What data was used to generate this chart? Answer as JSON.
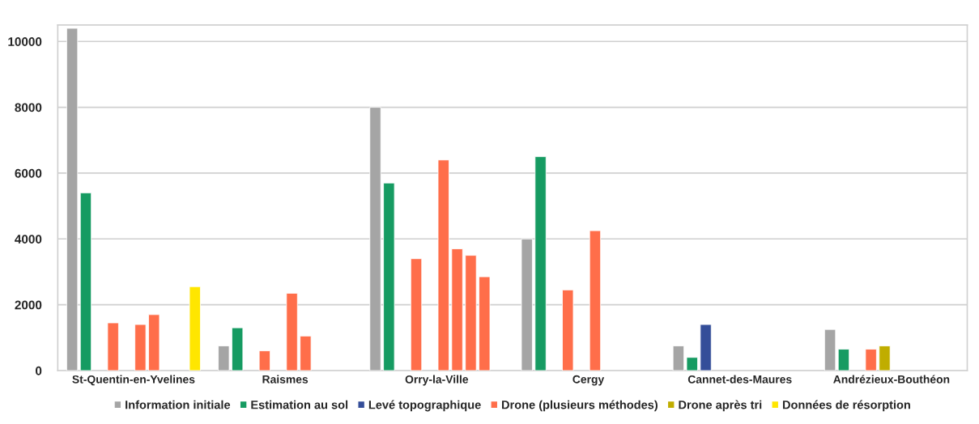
{
  "chart_data": {
    "type": "bar",
    "categories": [
      "St-Quentin-en-Yvelines",
      "Raismes",
      "Orry-la-Ville",
      "Cergy",
      "Cannet-des-Maures",
      "Andrézieux-Bouthéon"
    ],
    "series": [
      {
        "name": "Information initiale",
        "color": "#a5a5a5",
        "values": [
          10400,
          750,
          8000,
          4000,
          750,
          1250
        ]
      },
      {
        "name": "Estimation au sol",
        "color": "#169b62",
        "values": [
          5400,
          1300,
          5700,
          6500,
          400,
          650
        ]
      },
      {
        "name": "Levé topographique",
        "color": "#344e99",
        "values": [
          null,
          null,
          null,
          null,
          1400,
          null
        ]
      },
      {
        "name": "Drone (plusieurs méthodes)",
        "color": "#ff6e4a",
        "values": [
          1450,
          600,
          3400,
          2450,
          null,
          650
        ]
      },
      {
        "name": "Drone après tri",
        "color": "#c0ad00",
        "values": [
          null,
          null,
          null,
          null,
          null,
          750
        ]
      },
      {
        "color": "#ff6e4a",
        "values": [
          1400,
          2350,
          6400,
          4250,
          null,
          null
        ]
      },
      {
        "color": "#ff6e4a",
        "values": [
          1700,
          1050,
          3700,
          null,
          null,
          null
        ]
      },
      {
        "color": "#ff6e4a",
        "values": [
          null,
          null,
          3500,
          null,
          null,
          null
        ]
      },
      {
        "color": "#ff6e4a",
        "values": [
          null,
          null,
          2850,
          null,
          null,
          null
        ]
      },
      {
        "name": "Données de résorption",
        "color": "#ffe600",
        "values": [
          2550,
          null,
          null,
          null,
          null,
          null
        ]
      }
    ],
    "ylim": [
      0,
      10500
    ],
    "yticks": [
      0,
      2000,
      4000,
      6000,
      8000,
      10000
    ],
    "grid": "y",
    "legend": "bottom"
  }
}
